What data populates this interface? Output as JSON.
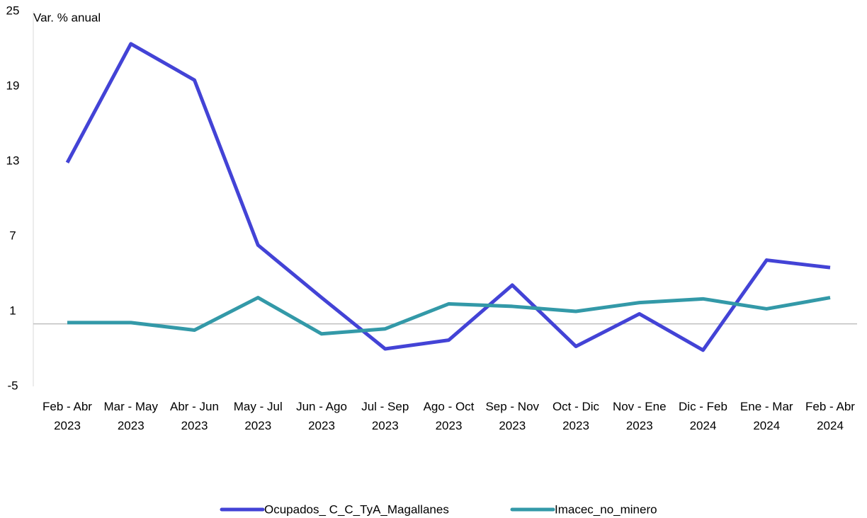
{
  "chart_data": {
    "type": "line",
    "y_label": "Var. % anual",
    "categories": [
      "Feb - Abr\n2023",
      "Mar - May\n2023",
      "Abr - Jun\n2023",
      "May - Jul\n2023",
      "Jun - Ago\n2023",
      "Jul - Sep\n2023",
      "Ago - Oct\n2023",
      "Sep - Nov\n2023",
      "Oct - Dic\n2023",
      "Nov - Ene\n2023",
      "Dic - Feb\n2024",
      "Ene - Mar\n2024",
      "Feb - Abr\n2024"
    ],
    "series": [
      {
        "name": "Ocupados_ C_C_TyA_Magallanes",
        "color": "#4343d6",
        "values": [
          12.9,
          22.4,
          19.5,
          6.3,
          2.1,
          -2.0,
          -1.3,
          3.1,
          -1.8,
          0.8,
          -2.1,
          5.1,
          4.5
        ]
      },
      {
        "name": "Imacec_no_minero",
        "color": "#3399a8",
        "values": [
          0.1,
          0.1,
          -0.5,
          2.1,
          -0.8,
          -0.4,
          1.6,
          1.4,
          1.0,
          1.7,
          2.0,
          1.2,
          2.1
        ]
      }
    ],
    "ylim": [
      -5,
      25
    ],
    "yticks": [
      -5,
      1,
      7,
      13,
      19,
      25
    ]
  }
}
